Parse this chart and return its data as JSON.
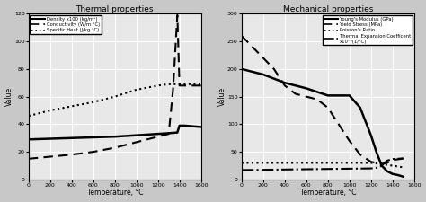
{
  "thermal": {
    "title": "Thermal properties",
    "xlabel": "Temperature, °C",
    "ylabel": "Value",
    "xlim": [
      0,
      1600
    ],
    "ylim": [
      0,
      120
    ],
    "xticks": [
      0,
      200,
      400,
      600,
      800,
      1000,
      1200,
      1400,
      1600
    ],
    "yticks": [
      0,
      20,
      40,
      60,
      80,
      100,
      120
    ],
    "density": {
      "label": "Density x100 (kg/m³)",
      "style": "solid",
      "lw": 1.8,
      "x": [
        0,
        200,
        400,
        600,
        800,
        1000,
        1200,
        1300,
        1380,
        1400,
        1450,
        1600
      ],
      "y": [
        29,
        29.5,
        30,
        30.5,
        31,
        32,
        33,
        33.5,
        34,
        39,
        39,
        38
      ]
    },
    "conductivity": {
      "label": "Conductivity (W/m °C)",
      "style": "dashed",
      "lw": 1.5,
      "x": [
        0,
        200,
        400,
        600,
        800,
        1000,
        1200,
        1300,
        1340,
        1380,
        1400,
        1450,
        1600
      ],
      "y": [
        15,
        16.5,
        18,
        20,
        23,
        27,
        31,
        33,
        65,
        119,
        68,
        68,
        68
      ]
    },
    "specific_heat": {
      "label": "Specific Heat (J/kg °C)",
      "style": "dotted",
      "lw": 1.5,
      "x": [
        0,
        200,
        400,
        600,
        800,
        1000,
        1200,
        1300,
        1400,
        1600
      ],
      "y": [
        46,
        50,
        53,
        56,
        60,
        65,
        68,
        69,
        69,
        69
      ]
    }
  },
  "mechanical": {
    "title": "Mechanical properties",
    "xlabel": "Temperature, °C",
    "ylabel": "Value",
    "xlim": [
      0,
      1600
    ],
    "ylim": [
      0,
      300
    ],
    "xticks": [
      0,
      200,
      400,
      600,
      800,
      1000,
      1200,
      1400,
      1600
    ],
    "yticks": [
      0,
      50,
      100,
      150,
      200,
      250,
      300
    ],
    "youngs": {
      "label": "Young's Modulus (GPa)",
      "style": "solid",
      "lw": 1.8,
      "x": [
        0,
        200,
        400,
        600,
        800,
        1000,
        1100,
        1200,
        1250,
        1300,
        1350,
        1400,
        1450,
        1500
      ],
      "y": [
        200,
        190,
        175,
        165,
        152,
        152,
        130,
        80,
        50,
        25,
        15,
        10,
        8,
        5
      ]
    },
    "yield_stress": {
      "label": "Yield Stress (MPa)",
      "style": "dashed",
      "lw": 1.5,
      "x": [
        0,
        100,
        200,
        300,
        400,
        500,
        600,
        700,
        800,
        900,
        1000,
        1100,
        1200,
        1250,
        1300,
        1350,
        1400,
        1500
      ],
      "y": [
        260,
        240,
        220,
        200,
        170,
        155,
        150,
        145,
        130,
        100,
        70,
        45,
        32,
        30,
        28,
        30,
        35,
        38
      ]
    },
    "poisson": {
      "label": "Poisson's Ratio",
      "style": "dotted",
      "lw": 1.5,
      "x": [
        0,
        400,
        800,
        1200,
        1300,
        1400,
        1500
      ],
      "y": [
        30,
        30,
        30,
        30,
        28,
        25,
        22
      ]
    },
    "thermal_exp": {
      "label": "Thermal Expansion Coefficent\nx10⁻⁵(1/°C)",
      "style": "dashdot",
      "lw": 1.5,
      "x": [
        0,
        200,
        400,
        600,
        800,
        1000,
        1200,
        1280,
        1350,
        1400,
        1500
      ],
      "y": [
        17,
        17.5,
        18,
        18.5,
        19,
        19.5,
        20,
        22,
        34,
        37,
        38
      ]
    }
  },
  "bg_color": "#e8e8e8",
  "grid_color": "#ffffff",
  "fig_bg": "#c8c8c8"
}
